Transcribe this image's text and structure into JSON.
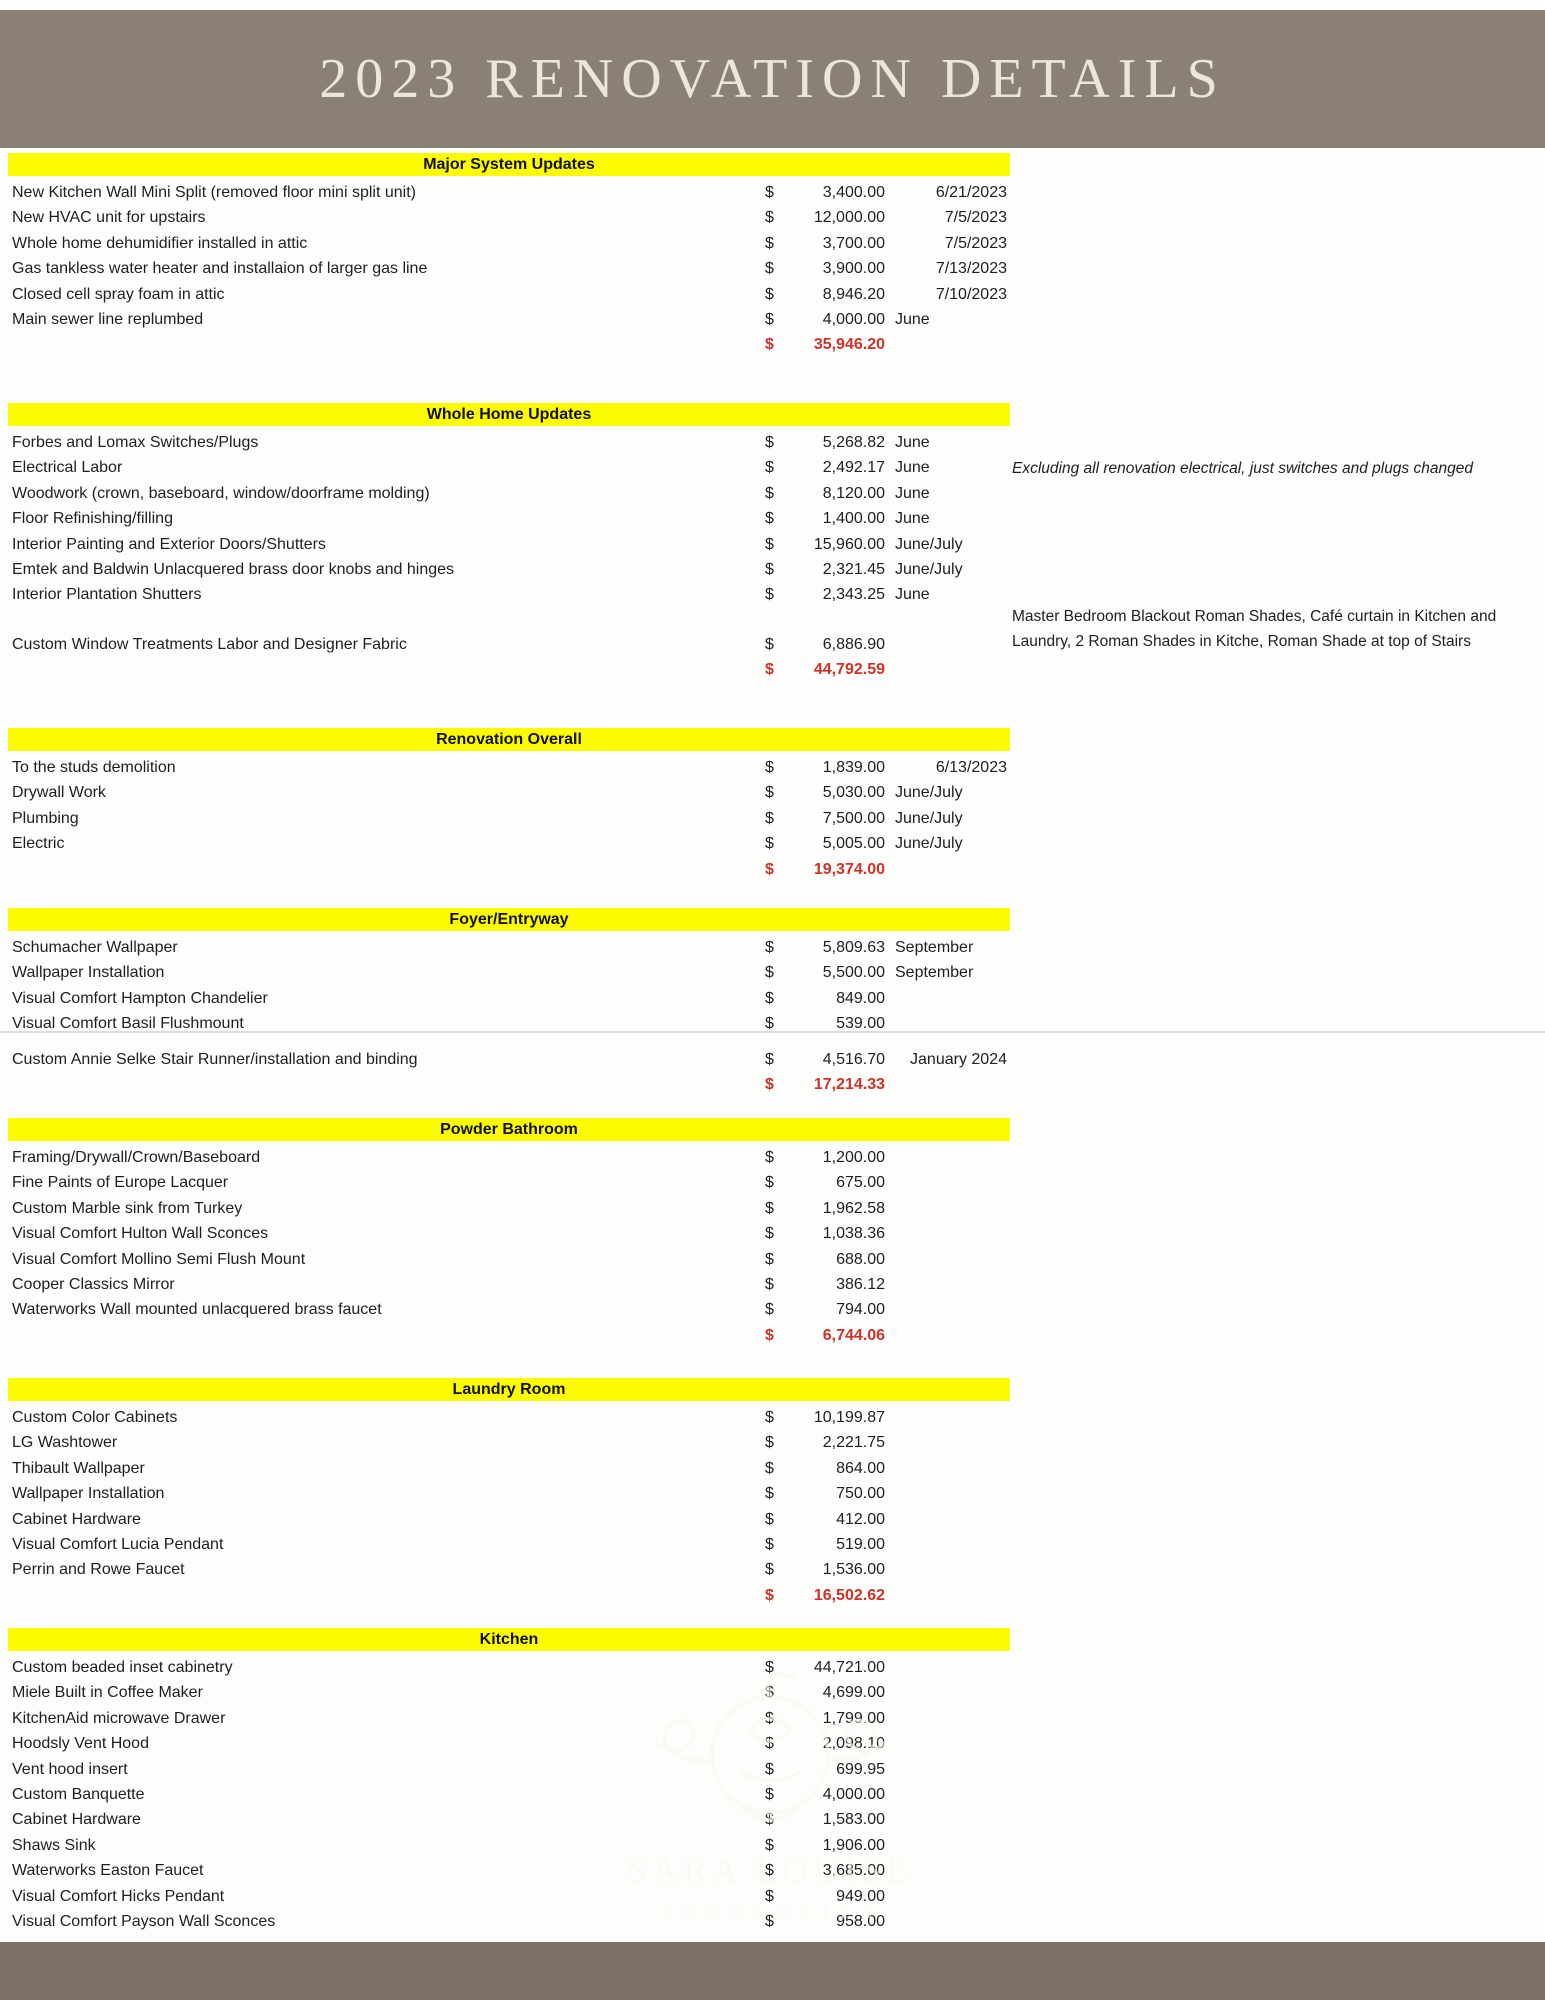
{
  "page": {
    "title": "2023 RENOVATION DETAILS"
  },
  "currency_symbol": "$",
  "colors": {
    "header_band": "#8a8174",
    "footer_band": "#7b7265",
    "section_highlight": "#fdfb02",
    "total_red": "#cf3227",
    "title_text": "#eae6dc"
  },
  "notes": [
    {
      "text": "Excluding all renovation electrical, just switches and plugs changed"
    },
    {
      "text": "Master Bedroom Blackout Roman Shades, Café curtain in Kitchen and Laundry, 2 Roman Shades in Kitche, Roman Shade at top of Stairs"
    }
  ],
  "watermark": {
    "line1": "SARA LOUISE",
    "line2": "P R O P E R T I E S"
  },
  "sections": [
    {
      "title": "Major System Updates",
      "rows": [
        {
          "label": "New Kitchen Wall Mini Split (removed floor mini split unit)",
          "amount": "3,400.00",
          "period": "6/21/2023"
        },
        {
          "label": "New HVAC unit for upstairs",
          "amount": "12,000.00",
          "period": "7/5/2023"
        },
        {
          "label": "Whole home dehumidifier installed in attic",
          "amount": "3,700.00",
          "period": "7/5/2023"
        },
        {
          "label": "Gas tankless water heater and installaion of larger gas line",
          "amount": "3,900.00",
          "period": "7/13/2023"
        },
        {
          "label": "Closed cell spray foam in attic",
          "amount": "8,946.20",
          "period": "7/10/2023"
        },
        {
          "label": "Main sewer line replumbed",
          "amount": "4,000.00",
          "period": "June"
        }
      ],
      "total": "35,946.20"
    },
    {
      "title": "Whole Home Updates",
      "rows": [
        {
          "label": "Forbes and Lomax Switches/Plugs",
          "amount": "5,268.82",
          "period": "June"
        },
        {
          "label": "Electrical Labor",
          "amount": "2,492.17",
          "period": "June"
        },
        {
          "label": "Woodwork (crown, baseboard, window/doorframe molding)",
          "amount": "8,120.00",
          "period": "June"
        },
        {
          "label": "Floor Refinishing/filling",
          "amount": "1,400.00",
          "period": "June"
        },
        {
          "label": "Interior Painting and Exterior Doors/Shutters",
          "amount": "15,960.00",
          "period": "June/July"
        },
        {
          "label": "Emtek and Baldwin Unlacquered brass door knobs and hinges",
          "amount": "2,321.45",
          "period": "June/July"
        },
        {
          "label": "Interior Plantation Shutters",
          "amount": "2,343.25",
          "period": "June"
        },
        {
          "label": "Custom Window Treatments Labor and Designer Fabric",
          "amount": "6,886.90",
          "period": "",
          "gap_before": 24
        }
      ],
      "total": "44,792.59"
    },
    {
      "title": "Renovation Overall",
      "rows": [
        {
          "label": "To the studs demolition",
          "amount": "1,839.00",
          "period": "6/13/2023"
        },
        {
          "label": "Drywall Work",
          "amount": "5,030.00",
          "period": "June/July"
        },
        {
          "label": "Plumbing",
          "amount": "7,500.00",
          "period": "June/July"
        },
        {
          "label": "Electric",
          "amount": "5,005.00",
          "period": "June/July"
        }
      ],
      "total": "19,374.00"
    },
    {
      "title": "Foyer/Entryway",
      "rows": [
        {
          "label": "Schumacher Wallpaper",
          "amount": "5,809.63",
          "period": "September"
        },
        {
          "label": "Wallpaper Installation",
          "amount": "5,500.00",
          "period": "September"
        },
        {
          "label": "Visual Comfort Hampton Chandelier",
          "amount": "849.00",
          "period": ""
        },
        {
          "label": "Visual Comfort Basil Flushmount",
          "amount": "539.00",
          "period": ""
        },
        {
          "label": "Custom Annie Selke Stair Runner/installation and binding",
          "amount": "4,516.70",
          "period": "January 2024",
          "gap_before": 10
        }
      ],
      "total": "17,214.33"
    },
    {
      "title": "Powder Bathroom",
      "rows": [
        {
          "label": "Framing/Drywall/Crown/Baseboard",
          "amount": "1,200.00",
          "period": ""
        },
        {
          "label": "Fine Paints of Europe Lacquer",
          "amount": "675.00",
          "period": ""
        },
        {
          "label": "Custom Marble sink from Turkey",
          "amount": "1,962.58",
          "period": ""
        },
        {
          "label": "Visual Comfort Hulton Wall Sconces",
          "amount": "1,038.36",
          "period": ""
        },
        {
          "label": "Visual Comfort Mollino Semi Flush Mount",
          "amount": "688.00",
          "period": ""
        },
        {
          "label": "Cooper Classics Mirror",
          "amount": "386.12",
          "period": ""
        },
        {
          "label": "Waterworks Wall mounted unlacquered brass faucet",
          "amount": "794.00",
          "period": ""
        }
      ],
      "total": "6,744.06"
    },
    {
      "title": "Laundry Room",
      "rows": [
        {
          "label": "Custom Color Cabinets",
          "amount": "10,199.87",
          "period": ""
        },
        {
          "label": "LG Washtower",
          "amount": "2,221.75",
          "period": ""
        },
        {
          "label": "Thibault Wallpaper",
          "amount": "864.00",
          "period": ""
        },
        {
          "label": "Wallpaper Installation",
          "amount": "750.00",
          "period": ""
        },
        {
          "label": "Cabinet Hardware",
          "amount": "412.00",
          "period": ""
        },
        {
          "label": "Visual Comfort Lucia Pendant",
          "amount": "519.00",
          "period": ""
        },
        {
          "label": "Perrin and Rowe Faucet",
          "amount": "1,536.00",
          "period": ""
        }
      ],
      "total": "16,502.62"
    },
    {
      "title": "Kitchen",
      "rows": [
        {
          "label": "Custom beaded inset cabinetry",
          "amount": "44,721.00",
          "period": ""
        },
        {
          "label": "Miele Built in Coffee Maker",
          "amount": "4,699.00",
          "period": ""
        },
        {
          "label": "KitchenAid microwave Drawer",
          "amount": "1,799.00",
          "period": ""
        },
        {
          "label": "Hoodsly Vent Hood",
          "amount": "2,098.10",
          "period": ""
        },
        {
          "label": "Vent hood insert",
          "amount": "699.95",
          "period": ""
        },
        {
          "label": "Custom Banquette",
          "amount": "4,000.00",
          "period": ""
        },
        {
          "label": "Cabinet Hardware",
          "amount": "1,583.00",
          "period": ""
        },
        {
          "label": "Shaws Sink",
          "amount": "1,906.00",
          "period": ""
        },
        {
          "label": "Waterworks Easton Faucet",
          "amount": "3,685.00",
          "period": ""
        },
        {
          "label": "Visual Comfort Hicks Pendant",
          "amount": "949.00",
          "period": ""
        },
        {
          "label": "Visual Comfort Payson Wall Sconces",
          "amount": "958.00",
          "period": ""
        }
      ],
      "total": null
    }
  ]
}
